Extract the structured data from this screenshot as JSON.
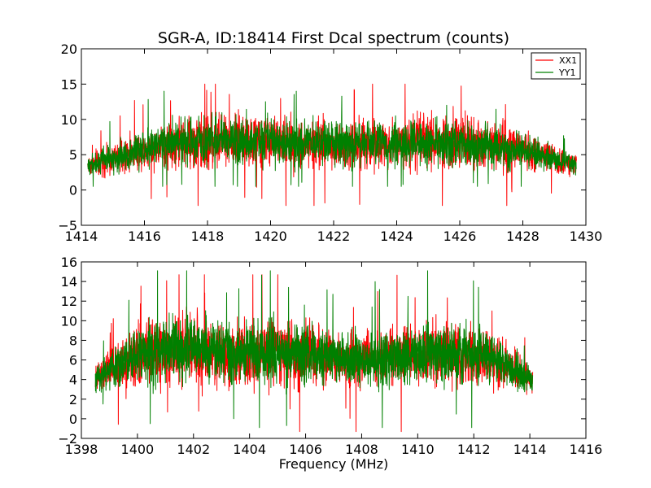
{
  "chart_data": [
    {
      "type": "line",
      "title": "SGR-A, ID:18414 First Dcal spectrum (counts)",
      "xlabel": "",
      "ylabel": "",
      "xlim": [
        1414,
        1430
      ],
      "ylim": [
        -5,
        20
      ],
      "xticks": [
        "1414",
        "1416",
        "1418",
        "1420",
        "1422",
        "1424",
        "1426",
        "1428",
        "1430"
      ],
      "yticks": [
        "−5",
        "0",
        "5",
        "10",
        "15",
        "20"
      ],
      "grid": false,
      "legend": {
        "placement": "top-right",
        "entries": [
          "XX1",
          "YY1"
        ]
      },
      "data_x_range": [
        1414.2,
        1429.7
      ],
      "series": [
        {
          "name": "XX1",
          "color": "#ff0000",
          "x": [
            1414.2,
            1415.0,
            1416.0,
            1417.0,
            1418.0,
            1419.0,
            1420.0,
            1421.0,
            1422.0,
            1423.0,
            1424.0,
            1425.0,
            1426.0,
            1427.0,
            1428.0,
            1429.0,
            1429.7
          ],
          "center": [
            3.5,
            4.5,
            5.8,
            6.5,
            6.8,
            7.0,
            6.8,
            6.5,
            6.6,
            6.6,
            6.8,
            6.8,
            6.8,
            6.5,
            5.5,
            4.3,
            3.5
          ],
          "amplitude": [
            2.0,
            3.0,
            4.0,
            5.0,
            5.5,
            5.5,
            5.0,
            5.0,
            5.0,
            5.0,
            5.0,
            5.5,
            5.5,
            5.0,
            4.0,
            3.0,
            2.0
          ],
          "max": 15.0,
          "min": -2.2
        },
        {
          "name": "YY1",
          "color": "#008000",
          "x": [
            1414.2,
            1415.0,
            1416.0,
            1417.0,
            1418.0,
            1419.0,
            1420.0,
            1421.0,
            1422.0,
            1423.0,
            1424.0,
            1425.0,
            1426.0,
            1427.0,
            1428.0,
            1429.0,
            1429.7
          ],
          "center": [
            3.5,
            4.5,
            5.8,
            6.8,
            7.0,
            7.0,
            6.8,
            6.5,
            6.5,
            6.6,
            6.6,
            6.6,
            6.5,
            6.3,
            5.5,
            4.3,
            3.5
          ],
          "amplitude": [
            1.8,
            2.8,
            3.8,
            4.5,
            4.8,
            4.8,
            4.5,
            4.5,
            4.5,
            4.5,
            4.5,
            4.5,
            4.5,
            4.3,
            3.6,
            2.6,
            1.8
          ],
          "max": 14.0,
          "min": 0.5
        }
      ]
    },
    {
      "type": "line",
      "title": "",
      "xlabel": "Frequency (MHz)",
      "ylabel": "",
      "xlim": [
        1398,
        1416
      ],
      "ylim": [
        -2,
        16
      ],
      "xticks": [
        "1398",
        "1400",
        "1402",
        "1404",
        "1406",
        "1408",
        "1410",
        "1412",
        "1414",
        "1416"
      ],
      "yticks": [
        "−2",
        "0",
        "2",
        "4",
        "6",
        "8",
        "10",
        "12",
        "14",
        "16"
      ],
      "grid": false,
      "data_x_range": [
        1398.5,
        1414.1
      ],
      "series": [
        {
          "color": "#ff0000",
          "x": [
            1398.5,
            1399.0,
            1400.0,
            1401.0,
            1402.0,
            1403.0,
            1404.0,
            1405.0,
            1406.0,
            1407.0,
            1408.0,
            1409.0,
            1410.0,
            1411.0,
            1412.0,
            1413.0,
            1414.1
          ],
          "center": [
            4.0,
            5.0,
            6.2,
            6.8,
            7.0,
            6.8,
            6.8,
            6.8,
            6.5,
            6.0,
            6.0,
            6.2,
            6.5,
            6.5,
            6.3,
            5.5,
            4.0
          ],
          "amplitude": [
            2.0,
            3.0,
            4.5,
            5.0,
            5.0,
            4.8,
            4.8,
            4.8,
            4.5,
            4.0,
            4.0,
            4.5,
            4.5,
            4.5,
            4.5,
            3.5,
            2.0
          ],
          "max": 14.7,
          "min": -1.3
        },
        {
          "color": "#008000",
          "x": [
            1398.5,
            1399.0,
            1400.0,
            1401.0,
            1402.0,
            1403.0,
            1404.0,
            1405.0,
            1406.0,
            1407.0,
            1408.0,
            1409.0,
            1410.0,
            1411.0,
            1412.0,
            1413.0,
            1414.1
          ],
          "center": [
            4.0,
            5.0,
            6.5,
            7.2,
            7.0,
            6.8,
            6.8,
            6.8,
            6.5,
            6.2,
            6.0,
            6.2,
            6.6,
            6.8,
            6.6,
            5.6,
            4.0
          ],
          "amplitude": [
            1.8,
            2.8,
            4.2,
            4.8,
            4.8,
            4.5,
            4.5,
            4.5,
            4.2,
            4.0,
            4.0,
            4.2,
            4.5,
            4.5,
            4.2,
            3.2,
            1.8
          ],
          "max": 15.1,
          "min": -0.9
        }
      ]
    }
  ]
}
